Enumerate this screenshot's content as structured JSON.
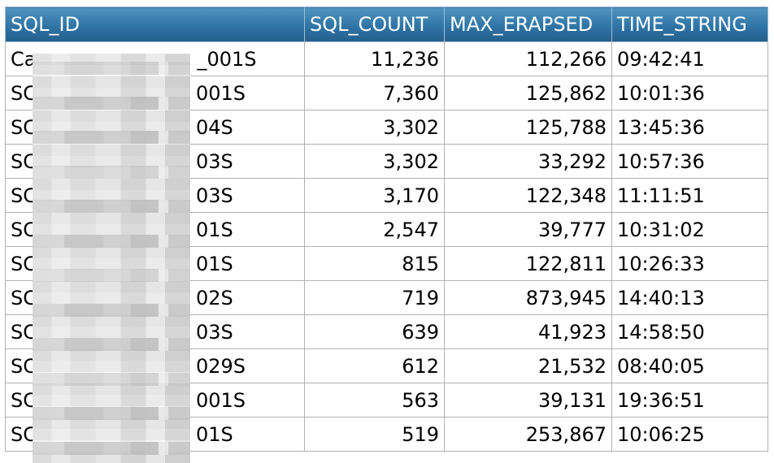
{
  "table": {
    "columns": [
      "SQL_ID",
      "SQL_COUNT",
      "MAX_ERAPSED",
      "TIME_STRING"
    ],
    "rows": [
      {
        "sql_id": "Ca",
        "sql_id_suffix": "_001S",
        "sql_count": "11,236",
        "max_erapsed": "112,266",
        "time_string": "09:42:41"
      },
      {
        "sql_id": "SC",
        "sql_id_suffix": "001S",
        "sql_count": "7,360",
        "max_erapsed": "125,862",
        "time_string": "10:01:36"
      },
      {
        "sql_id": "SC",
        "sql_id_suffix": "04S",
        "sql_count": "3,302",
        "max_erapsed": "125,788",
        "time_string": "13:45:36"
      },
      {
        "sql_id": "SC",
        "sql_id_suffix": "03S",
        "sql_count": "3,302",
        "max_erapsed": "33,292",
        "time_string": "10:57:36"
      },
      {
        "sql_id": "SC",
        "sql_id_suffix": "03S",
        "sql_count": "3,170",
        "max_erapsed": "122,348",
        "time_string": "11:11:51"
      },
      {
        "sql_id": "SC",
        "sql_id_suffix": "01S",
        "sql_count": "2,547",
        "max_erapsed": "39,777",
        "time_string": "10:31:02"
      },
      {
        "sql_id": "SC",
        "sql_id_suffix": "01S",
        "sql_count": "815",
        "max_erapsed": "122,811",
        "time_string": "10:26:33"
      },
      {
        "sql_id": "SC",
        "sql_id_suffix": "02S",
        "sql_count": "719",
        "max_erapsed": "873,945",
        "time_string": "14:40:13"
      },
      {
        "sql_id": "SC",
        "sql_id_suffix": "03S",
        "sql_count": "639",
        "max_erapsed": "41,923",
        "time_string": "14:58:50"
      },
      {
        "sql_id": "SC",
        "sql_id_suffix": "029S",
        "sql_count": "612",
        "max_erapsed": "21,532",
        "time_string": "08:40:05"
      },
      {
        "sql_id": "SC",
        "sql_id_suffix": "001S",
        "sql_count": "563",
        "max_erapsed": "39,131",
        "time_string": "19:36:51"
      },
      {
        "sql_id": "SC",
        "sql_id_suffix": "01S",
        "sql_count": "519",
        "max_erapsed": "253,867",
        "time_string": "10:06:25"
      }
    ]
  },
  "colors": {
    "header_top": "#4f95c1",
    "header_bottom": "#245f8c",
    "grid_line": "#b2b2b2"
  }
}
